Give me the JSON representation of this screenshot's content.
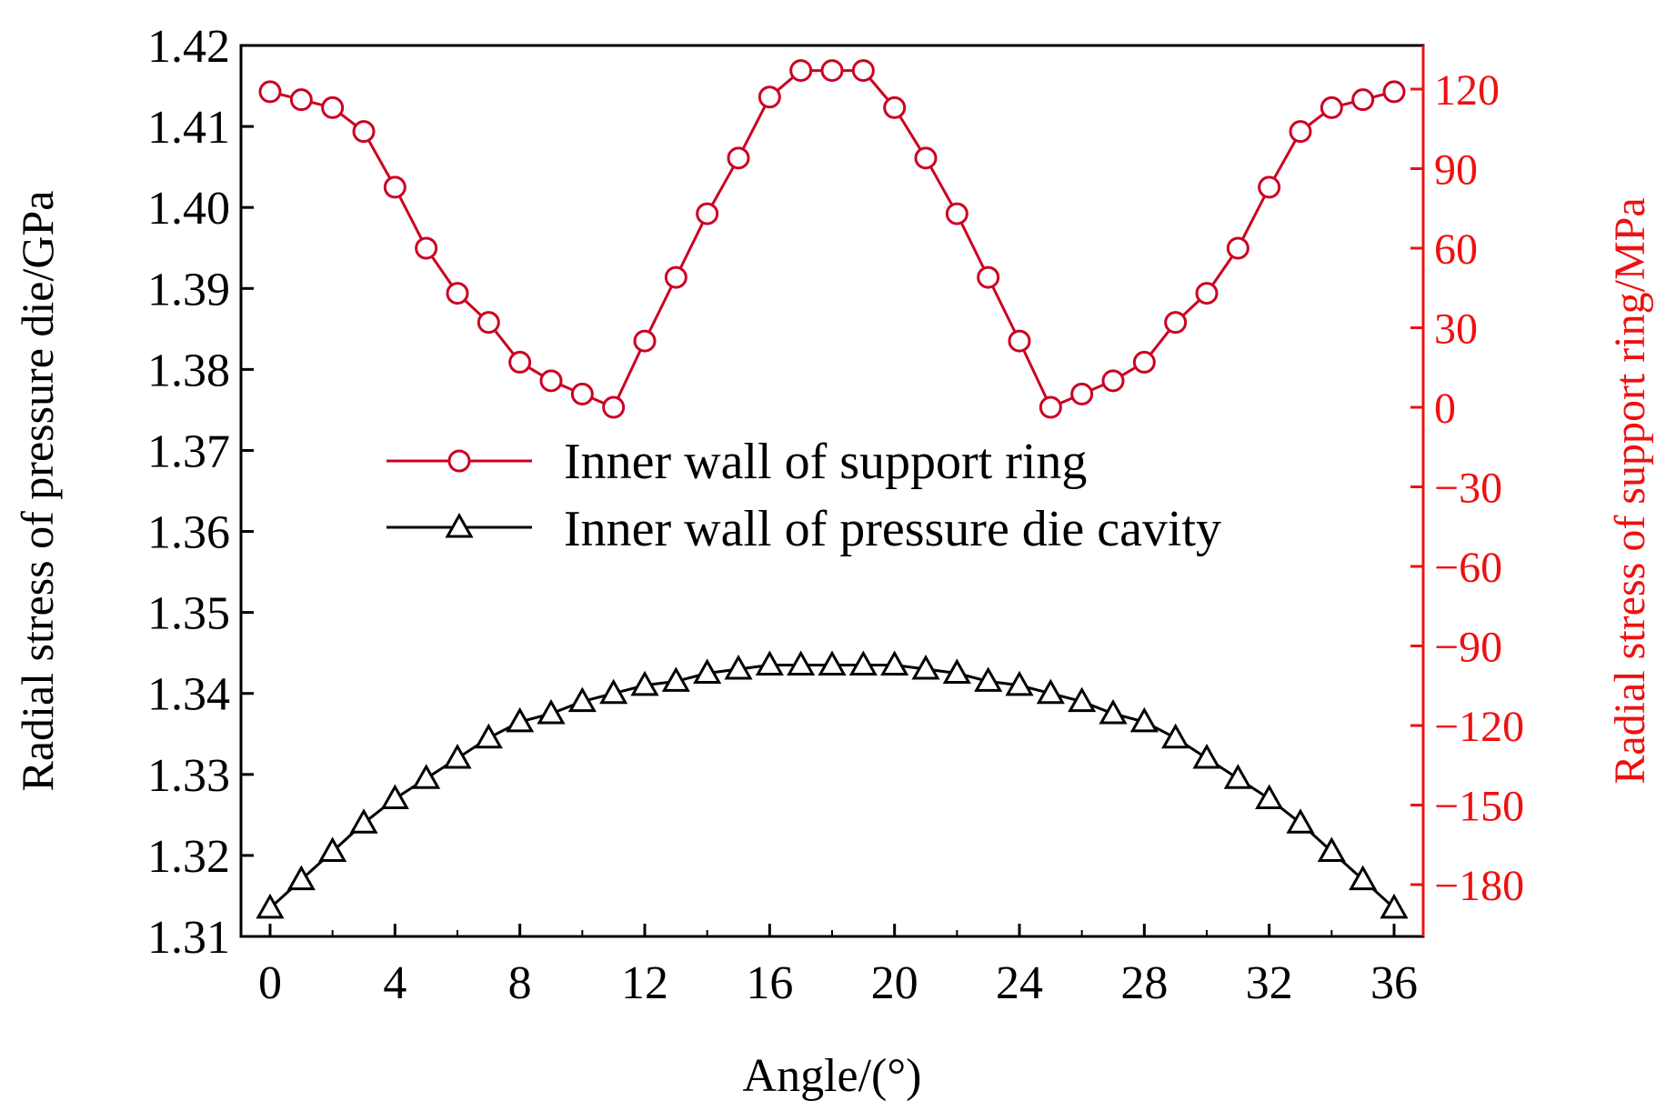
{
  "chart_data": {
    "type": "line",
    "title": "",
    "xlabel": "Angle/(°)",
    "ylabel_left": "Radial stress of pressure die/GPa",
    "ylabel_right": "Radial stress of support ring/MPa",
    "x_ticks": [
      "0",
      "4",
      "8",
      "12",
      "16",
      "20",
      "24",
      "28",
      "32",
      "36"
    ],
    "y_left_ticks": [
      "1.31",
      "1.32",
      "1.33",
      "1.34",
      "1.35",
      "1.36",
      "1.37",
      "1.38",
      "1.39",
      "1.40",
      "1.41",
      "1.42"
    ],
    "y_right_ticks": [
      "120",
      "90",
      "60",
      "30",
      "0",
      "−30",
      "−60",
      "−90",
      "−120",
      "−150",
      "−180"
    ],
    "xlim": [
      -1,
      37
    ],
    "ylim_left": [
      1.31,
      1.42
    ],
    "ylim_right": [
      -200,
      132
    ],
    "grid": false,
    "legend_position": "center",
    "x": [
      0,
      1,
      2,
      3,
      4,
      5,
      6,
      7,
      8,
      9,
      10,
      11,
      12,
      13,
      14,
      15,
      16,
      17,
      18,
      19,
      20,
      21,
      22,
      23,
      24,
      25,
      26,
      27,
      28,
      29,
      30,
      31,
      32,
      33,
      34,
      35,
      36
    ],
    "series": [
      {
        "name": "Inner wall of support ring",
        "axis": "right",
        "color": "#cc0022",
        "marker": "circle",
        "values": [
          119,
          116,
          113,
          104,
          83,
          60,
          43,
          32,
          17,
          10,
          5,
          0,
          25,
          49,
          73,
          94,
          117,
          127,
          127,
          127,
          113,
          94,
          73,
          49,
          25,
          0,
          5,
          10,
          17,
          32,
          43,
          60,
          83,
          104,
          113,
          116,
          119
        ]
      },
      {
        "name": "Inner wall of pressure die cavity",
        "axis": "left",
        "color": "#000000",
        "marker": "triangle",
        "values": [
          1.3135,
          1.317,
          1.3205,
          1.324,
          1.327,
          1.3295,
          1.332,
          1.3345,
          1.3365,
          1.3375,
          1.339,
          1.34,
          1.341,
          1.3415,
          1.3425,
          1.343,
          1.3435,
          1.3435,
          1.3435,
          1.3435,
          1.3435,
          1.343,
          1.3425,
          1.3415,
          1.341,
          1.34,
          1.339,
          1.3375,
          1.3365,
          1.3345,
          1.332,
          1.3295,
          1.327,
          1.324,
          1.3205,
          1.317,
          1.3135
        ]
      }
    ]
  }
}
